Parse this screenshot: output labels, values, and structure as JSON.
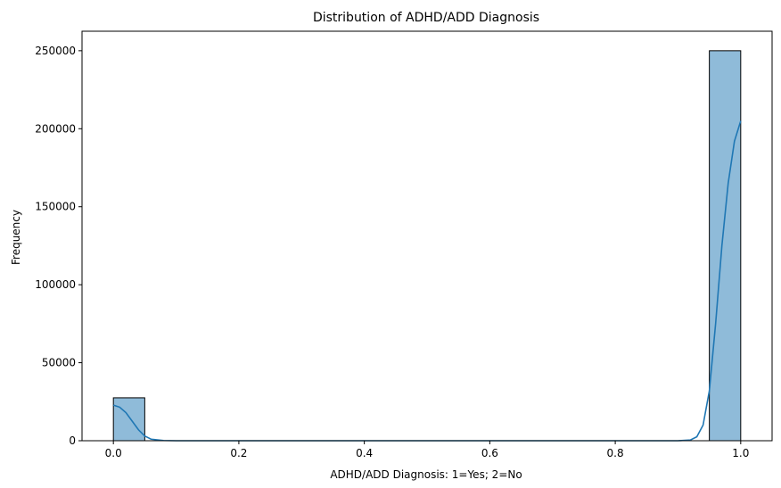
{
  "chart_data": {
    "type": "bar",
    "title": "Distribution of ADHD/ADD Diagnosis",
    "xlabel": "ADHD/ADD Diagnosis: 1=Yes; 2=No",
    "ylabel": "Frequency",
    "xlim": [
      -0.05,
      1.05
    ],
    "ylim": [
      0,
      262500
    ],
    "x_ticks": [
      0.0,
      0.2,
      0.4,
      0.6,
      0.8,
      1.0
    ],
    "x_tick_labels": [
      "0.0",
      "0.2",
      "0.4",
      "0.6",
      "0.8",
      "1.0"
    ],
    "y_ticks": [
      0,
      50000,
      100000,
      150000,
      200000,
      250000
    ],
    "y_tick_labels": [
      "0",
      "50000",
      "100000",
      "150000",
      "200000",
      "250000"
    ],
    "bins": [
      {
        "x0": 0.0,
        "x1": 0.05,
        "count": 27500
      },
      {
        "x0": 0.95,
        "x1": 1.0,
        "count": 250000
      }
    ],
    "kde": [
      [
        0.0,
        22800
      ],
      [
        0.01,
        21500
      ],
      [
        0.02,
        18000
      ],
      [
        0.03,
        12500
      ],
      [
        0.04,
        7000
      ],
      [
        0.05,
        3000
      ],
      [
        0.06,
        1000
      ],
      [
        0.08,
        150
      ],
      [
        0.1,
        0
      ],
      [
        0.9,
        0
      ],
      [
        0.92,
        500
      ],
      [
        0.93,
        2500
      ],
      [
        0.94,
        10000
      ],
      [
        0.95,
        32000
      ],
      [
        0.96,
        75000
      ],
      [
        0.97,
        125000
      ],
      [
        0.98,
        165000
      ],
      [
        0.99,
        192000
      ],
      [
        1.0,
        205000
      ]
    ],
    "grid": false,
    "colors": {
      "bar_fill": "#1f77b4",
      "bar_fill_opacity": 0.5,
      "bar_edge": "#000000",
      "kde_line": "#1f77b4"
    }
  }
}
